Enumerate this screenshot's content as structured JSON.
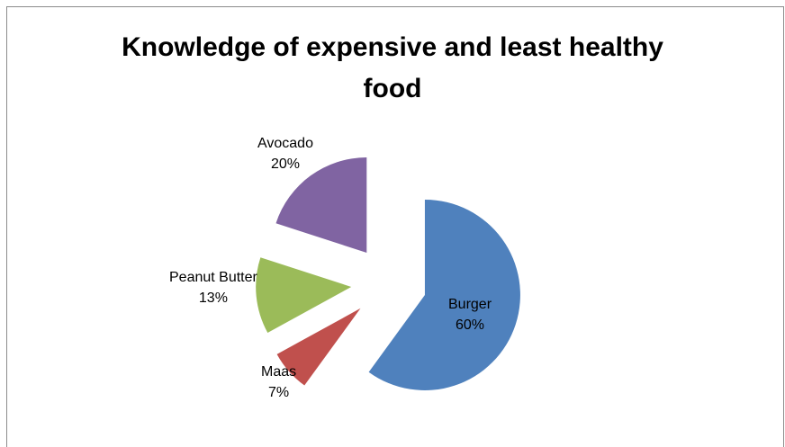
{
  "chart_data": {
    "type": "pie",
    "title": "Knowledge of expensive and least healthy food",
    "title_lines": [
      "Knowledge of expensive and least healthy",
      "food"
    ],
    "slices": [
      {
        "name": "Burger",
        "value": 60,
        "label": "60%",
        "color": "#4f81bd"
      },
      {
        "name": "Maas",
        "value": 7,
        "label": "7%",
        "color": "#c0504d"
      },
      {
        "name": "Peanut Butter",
        "value": 13,
        "label": "13%",
        "color": "#9bbb59"
      },
      {
        "name": "Avocado",
        "value": 20,
        "label": "20%",
        "color": "#8064a2"
      }
    ],
    "exploded": true,
    "legend": "none"
  }
}
